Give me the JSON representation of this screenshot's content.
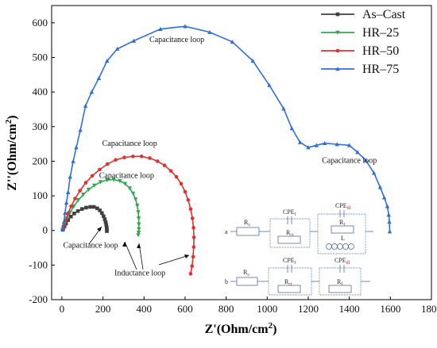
{
  "chart_data": {
    "type": "line",
    "xlabel": "Z'(Ohm/cm",
    "xlabel_sup": "2",
    "xlabel_end": ")",
    "ylabel": "Z''(Ohm/cm",
    "ylabel_sup": "2",
    "ylabel_end": ")",
    "xlim": [
      -50,
      1800
    ],
    "ylim": [
      -200,
      650
    ],
    "xticks": [
      0,
      200,
      400,
      600,
      800,
      1000,
      1200,
      1400,
      1600,
      1800
    ],
    "yticks": [
      -200,
      -100,
      0,
      100,
      200,
      300,
      400,
      500,
      600
    ],
    "legend_position": "top-right",
    "series": [
      {
        "name": "As–Cast",
        "color": "#404040",
        "marker": "square",
        "points": [
          [
            4,
            2
          ],
          [
            8,
            8
          ],
          [
            13,
            13
          ],
          [
            20,
            20
          ],
          [
            30,
            30
          ],
          [
            44,
            40
          ],
          [
            60,
            49
          ],
          [
            78,
            56
          ],
          [
            98,
            62
          ],
          [
            118,
            66
          ],
          [
            138,
            68
          ],
          [
            156,
            68
          ],
          [
            172,
            64
          ],
          [
            185,
            58
          ],
          [
            195,
            50
          ],
          [
            203,
            41
          ],
          [
            209,
            32
          ],
          [
            213,
            24
          ],
          [
            216,
            16
          ],
          [
            218,
            9
          ],
          [
            219,
            3
          ],
          [
            219,
            -2
          ]
        ]
      },
      {
        "name": "HR–25",
        "color": "#2ea84f",
        "marker": "triangle-down",
        "points": [
          [
            4,
            2
          ],
          [
            8,
            10
          ],
          [
            15,
            20
          ],
          [
            25,
            35
          ],
          [
            40,
            52
          ],
          [
            58,
            70
          ],
          [
            80,
            88
          ],
          [
            104,
            104
          ],
          [
            130,
            118
          ],
          [
            158,
            130
          ],
          [
            188,
            140
          ],
          [
            220,
            146
          ],
          [
            252,
            147
          ],
          [
            282,
            143
          ],
          [
            308,
            135
          ],
          [
            330,
            122
          ],
          [
            347,
            107
          ],
          [
            359,
            90
          ],
          [
            367,
            72
          ],
          [
            372,
            53
          ],
          [
            374,
            35
          ],
          [
            375,
            18
          ],
          [
            375,
            4
          ],
          [
            374,
            -6
          ],
          [
            372,
            -13
          ]
        ]
      },
      {
        "name": "HR–50",
        "color": "#e03030",
        "marker": "circle",
        "points": [
          [
            5,
            3
          ],
          [
            10,
            15
          ],
          [
            18,
            30
          ],
          [
            30,
            50
          ],
          [
            45,
            70
          ],
          [
            64,
            92
          ],
          [
            88,
            115
          ],
          [
            116,
            138
          ],
          [
            148,
            158
          ],
          [
            184,
            176
          ],
          [
            222,
            192
          ],
          [
            262,
            204
          ],
          [
            304,
            211
          ],
          [
            346,
            214
          ],
          [
            388,
            214
          ],
          [
            428,
            209
          ],
          [
            466,
            200
          ],
          [
            500,
            188
          ],
          [
            531,
            172
          ],
          [
            558,
            155
          ],
          [
            581,
            135
          ],
          [
            600,
            112
          ],
          [
            615,
            88
          ],
          [
            627,
            62
          ],
          [
            636,
            35
          ],
          [
            641,
            8
          ],
          [
            643,
            -20
          ],
          [
            642,
            -48
          ],
          [
            639,
            -76
          ],
          [
            634,
            -103
          ],
          [
            627,
            -125
          ]
        ]
      },
      {
        "name": "HR–75",
        "color": "#2f6fd6",
        "marker": "triangle-up",
        "points": [
          [
            5,
            5
          ],
          [
            10,
            25
          ],
          [
            15,
            50
          ],
          [
            22,
            80
          ],
          [
            30,
            110
          ],
          [
            40,
            155
          ],
          [
            55,
            200
          ],
          [
            70,
            240
          ],
          [
            90,
            290
          ],
          [
            115,
            360
          ],
          [
            145,
            400
          ],
          [
            180,
            440
          ],
          [
            220,
            490
          ],
          [
            270,
            525
          ],
          [
            350,
            548
          ],
          [
            480,
            582
          ],
          [
            600,
            590
          ],
          [
            720,
            573
          ],
          [
            830,
            545
          ],
          [
            930,
            490
          ],
          [
            1010,
            420
          ],
          [
            1080,
            352
          ],
          [
            1120,
            295
          ],
          [
            1160,
            255
          ],
          [
            1200,
            240
          ],
          [
            1240,
            246
          ],
          [
            1280,
            252
          ],
          [
            1340,
            249
          ],
          [
            1400,
            246
          ],
          [
            1440,
            226
          ],
          [
            1480,
            203
          ],
          [
            1520,
            166
          ],
          [
            1550,
            125
          ],
          [
            1570,
            95
          ],
          [
            1585,
            70
          ],
          [
            1592,
            45
          ],
          [
            1595,
            25
          ],
          [
            1597,
            -3
          ]
        ]
      }
    ],
    "annotations": [
      {
        "text": "Capacitance loop",
        "x": 560,
        "y": 545
      },
      {
        "text": "Capacitance loop",
        "x": 330,
        "y": 245
      },
      {
        "text": "Capacitance loop",
        "x": 315,
        "y": 152
      },
      {
        "text": "Capacitance loop",
        "x": 1400,
        "y": 195
      },
      {
        "text": "Capacitance loop",
        "x": 140,
        "y": -50
      },
      {
        "text": "Inductance loop",
        "x": 380,
        "y": -130
      }
    ],
    "circuit": {
      "a_label": "a",
      "b_label": "b",
      "rs": "R",
      "rs_sub": "s",
      "cpe": "CPE",
      "cpe_f_sub": "f",
      "cpe_dl_sub": "dl",
      "rct": "R",
      "rct_sub": "ct",
      "rf": "R",
      "rf_sub": "f",
      "l": "L"
    }
  }
}
